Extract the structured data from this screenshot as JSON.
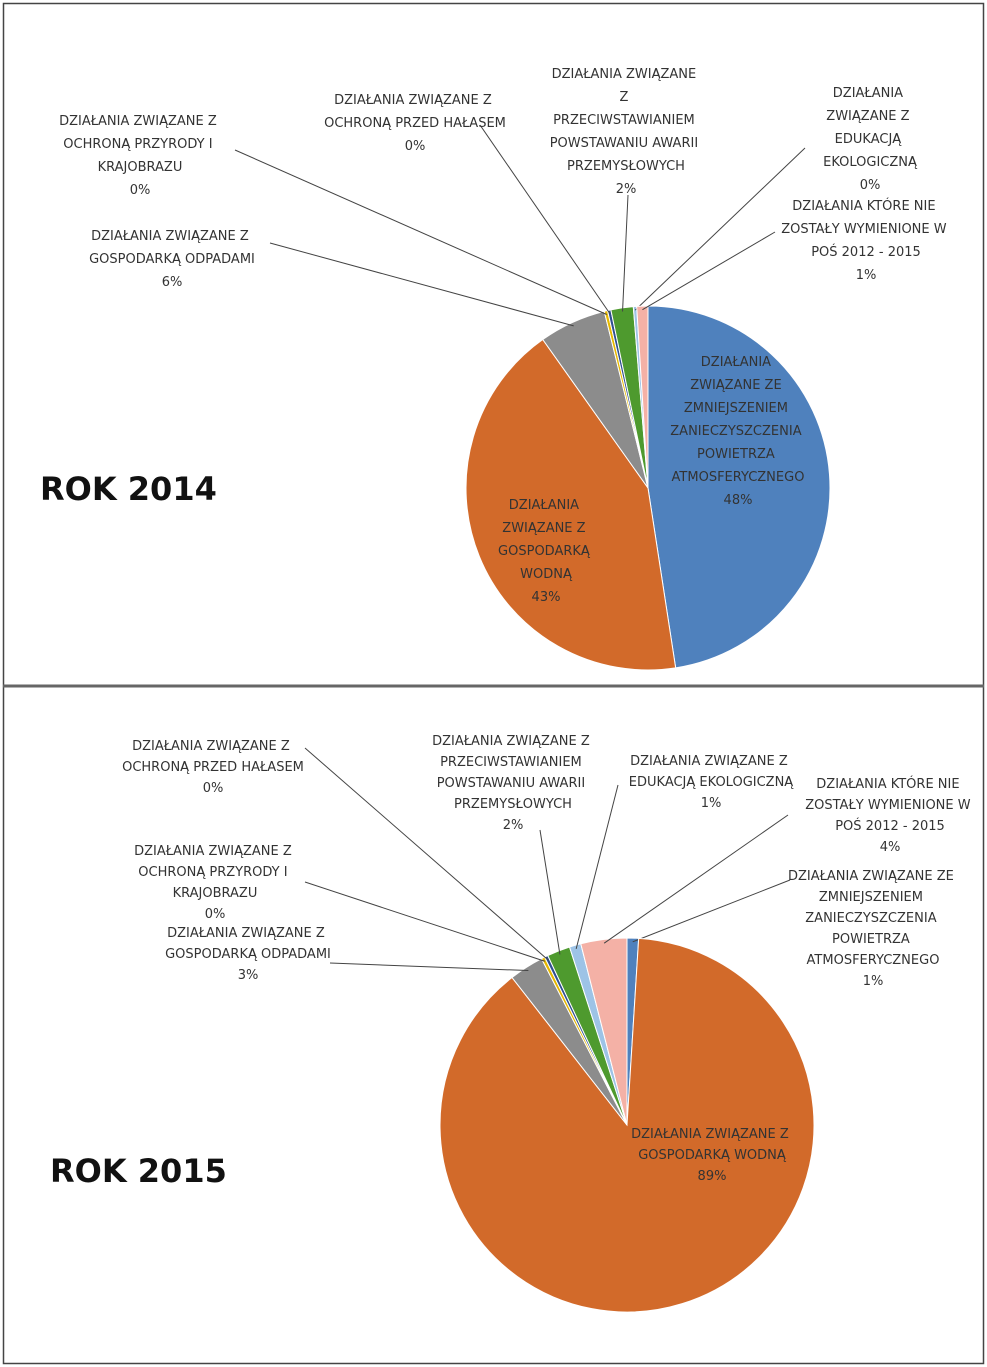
{
  "chart_data": [
    {
      "type": "pie",
      "title": "ROK 2014",
      "categories": [
        "DZIAŁANIA ZWIĄZANE ZE ZMNIEJSZENIEM ZANIECZYSZCZENIA POWIETRZA ATMOSFERYCZNEGO",
        "DZIAŁANIA ZWIĄZANE Z GOSPODARKĄ WODNĄ",
        "DZIAŁANIA ZWIĄZANE Z GOSPODARKĄ ODPADAMI",
        "DZIAŁANIA ZWIĄZANE Z OCHRONĄ PRZYRODY I KRAJOBRAZU",
        "DZIAŁANIA ZWIĄZANE Z OCHRONĄ PRZED HAŁASEM",
        "DZIAŁANIA ZWIĄZANE Z PRZECIWSTAWIANIEM POWSTAWANIU AWARII PRZEMYSŁOWYCH",
        "DZIAŁANIA ZWIĄZANE Z EDUKACJĄ EKOLOGICZNĄ",
        "DZIAŁANIA KTÓRE NIE ZOSTAŁY WYMIENIONE W POŚ 2012 - 2015"
      ],
      "values": [
        48,
        43,
        6,
        0.3,
        0.3,
        2,
        0.3,
        1
      ],
      "value_labels": [
        "48%",
        "43%",
        "6%",
        "0%",
        "0%",
        "2%",
        "0%",
        "1%"
      ],
      "colors": [
        "#4f81bd",
        "#d26a2a",
        "#8c8c8c",
        "#e6b800",
        "#2f4f8f",
        "#4e9a2e",
        "#9dc3e6",
        "#f4b1a6"
      ]
    },
    {
      "type": "pie",
      "title": "ROK 2015",
      "categories": [
        "DZIAŁANIA ZWIĄZANE ZE ZMNIEJSZENIEM ZANIECZYSZCZENIA POWIETRZA ATMOSFERYCZNEGO",
        "DZIAŁANIA ZWIĄZANE Z GOSPODARKĄ WODNĄ",
        "DZIAŁANIA ZWIĄZANE Z GOSPODARKĄ ODPADAMI",
        "DZIAŁANIA ZWIĄZANE Z OCHRONĄ PRZYRODY I KRAJOBRAZU",
        "DZIAŁANIA ZWIĄZANE Z OCHRONĄ PRZED HAŁASEM",
        "DZIAŁANIA ZWIĄZANE Z PRZECIWSTAWIANIEM POWSTAWANIU AWARII PRZEMYSŁOWYCH",
        "DZIAŁANIA ZWIĄZANE Z EDUKACJĄ EKOLOGICZNĄ",
        "DZIAŁANIA KTÓRE NIE ZOSTAŁY WYMIENIONE W POŚ 2012 - 2015"
      ],
      "values": [
        1,
        89,
        3,
        0.3,
        0.3,
        2,
        1,
        4
      ],
      "value_labels": [
        "1%",
        "89%",
        "3%",
        "0%",
        "0%",
        "2%",
        "1%",
        "4%"
      ],
      "colors": [
        "#4f81bd",
        "#d26a2a",
        "#8c8c8c",
        "#e6b800",
        "#2f4f8f",
        "#4e9a2e",
        "#9dc3e6",
        "#f4b1a6"
      ]
    }
  ]
}
